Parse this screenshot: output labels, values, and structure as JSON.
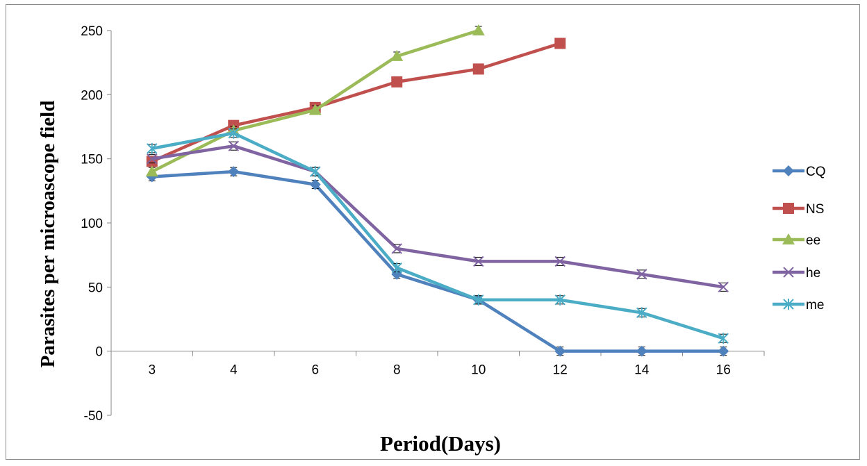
{
  "chart_data": {
    "type": "line",
    "xlabel": "Period(Days)",
    "ylabel": "Parasites per microascope field",
    "categories": [
      "3",
      "4",
      "6",
      "8",
      "10",
      "12",
      "14",
      "16"
    ],
    "yticks": [
      -50,
      0,
      50,
      100,
      150,
      200,
      250
    ],
    "ylim": [
      -50,
      250
    ],
    "grid": false,
    "legend": "right",
    "series": [
      {
        "name": "CQ",
        "color": "#4F81BD",
        "marker": "diamond",
        "values": [
          136,
          140,
          130,
          60,
          40,
          0,
          0,
          0
        ]
      },
      {
        "name": "NS",
        "color": "#C0504D",
        "marker": "square",
        "values": [
          148,
          176,
          190,
          210,
          220,
          240,
          null,
          null
        ]
      },
      {
        "name": "ee",
        "color": "#9BBB59",
        "marker": "triangle",
        "values": [
          140,
          172,
          188,
          230,
          250,
          null,
          null,
          null
        ]
      },
      {
        "name": "he",
        "color": "#8064A2",
        "marker": "x",
        "values": [
          150,
          160,
          140,
          80,
          70,
          70,
          60,
          50
        ]
      },
      {
        "name": "me",
        "color": "#4BACC6",
        "marker": "star",
        "values": [
          158,
          170,
          140,
          65,
          40,
          40,
          30,
          10
        ]
      }
    ]
  }
}
